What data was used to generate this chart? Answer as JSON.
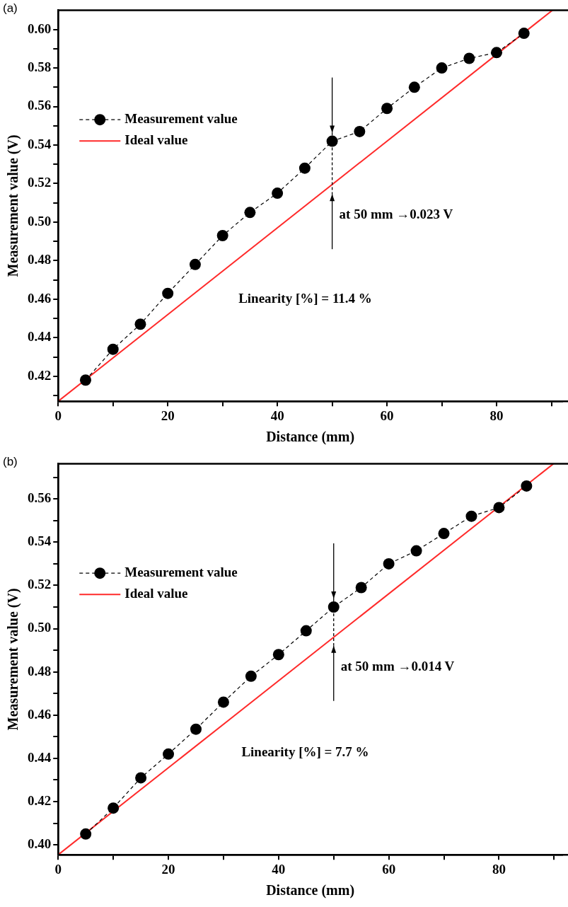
{
  "chart_data": [
    {
      "type": "line",
      "title": "(a)",
      "xlabel": "Distance (mm)",
      "ylabel": "Measurement value (V)",
      "xlim": [
        0,
        92
      ],
      "ylim": [
        0.407,
        0.61
      ],
      "xticks": [
        0,
        {
          "value": 10,
          "label": null
        },
        20,
        {
          "value": 30,
          "label": null
        },
        40,
        {
          "value": 50,
          "label": null
        },
        60,
        {
          "value": 70,
          "label": null
        },
        80,
        {
          "value": 90,
          "label": null
        }
      ],
      "yticks": [
        {
          "value": 0.41,
          "label": null
        },
        {
          "value": 0.42,
          "label": "0.42"
        },
        {
          "value": 0.43,
          "label": null
        },
        {
          "value": 0.44,
          "label": "0.44"
        },
        {
          "value": 0.45,
          "label": null
        },
        {
          "value": 0.46,
          "label": "0.46"
        },
        {
          "value": 0.47,
          "label": null
        },
        {
          "value": 0.48,
          "label": "0.48"
        },
        {
          "value": 0.49,
          "label": null
        },
        {
          "value": 0.5,
          "label": "0.50"
        },
        {
          "value": 0.51,
          "label": null
        },
        {
          "value": 0.52,
          "label": "0.52"
        },
        {
          "value": 0.53,
          "label": null
        },
        {
          "value": 0.54,
          "label": "0.54"
        },
        {
          "value": 0.55,
          "label": null
        },
        {
          "value": 0.56,
          "label": "0.56"
        },
        {
          "value": 0.57,
          "label": null
        },
        {
          "value": 0.58,
          "label": "0.58"
        },
        {
          "value": 0.59,
          "label": null
        },
        {
          "value": 0.6,
          "label": "0.60"
        }
      ],
      "grid": false,
      "legend": "top left",
      "series": [
        {
          "name": "Measurement value",
          "color": "#000000",
          "marker": "circle",
          "line_style": "dashed",
          "x": [
            5,
            10,
            15,
            20,
            25,
            30,
            35,
            40,
            45,
            50,
            55,
            60,
            65,
            70,
            75,
            80,
            85
          ],
          "values": [
            0.418,
            0.434,
            0.447,
            0.463,
            0.478,
            0.493,
            0.505,
            0.515,
            0.528,
            0.542,
            0.547,
            0.559,
            0.57,
            0.58,
            0.585,
            0.588,
            0.598
          ]
        },
        {
          "name": "Ideal value",
          "color": "#ff2a2a",
          "marker": "none",
          "line_style": "solid",
          "x": [
            0,
            90.2
          ],
          "values": [
            0.407,
            0.61
          ]
        }
      ],
      "annotations": [
        {
          "text": "at 50 mm →0.023 V",
          "x": 50,
          "y": 0.519
        },
        "Linearity [%] = 11.4 %"
      ]
    },
    {
      "type": "line",
      "title": "(b)",
      "xlabel": "Distance (mm)",
      "ylabel": "Measurement value (V)",
      "xlim": [
        0,
        91.5
      ],
      "ylim": [
        0.3954,
        0.5763
      ],
      "xticks": [
        0,
        {
          "value": 10,
          "label": null
        },
        20,
        {
          "value": 30,
          "label": null
        },
        40,
        {
          "value": 50,
          "label": null
        },
        60,
        {
          "value": 70,
          "label": null
        },
        80,
        {
          "value": 90,
          "label": null
        }
      ],
      "yticks": [
        {
          "value": 0.4,
          "label": "0.40"
        },
        {
          "value": 0.41,
          "label": null
        },
        {
          "value": 0.42,
          "label": "0.42"
        },
        {
          "value": 0.43,
          "label": null
        },
        {
          "value": 0.44,
          "label": "0.44"
        },
        {
          "value": 0.45,
          "label": null
        },
        {
          "value": 0.46,
          "label": "0.46"
        },
        {
          "value": 0.47,
          "label": null
        },
        {
          "value": 0.48,
          "label": "0.48"
        },
        {
          "value": 0.49,
          "label": null
        },
        {
          "value": 0.5,
          "label": "0.50"
        },
        {
          "value": 0.51,
          "label": null
        },
        {
          "value": 0.52,
          "label": "0.52"
        },
        {
          "value": 0.53,
          "label": null
        },
        {
          "value": 0.54,
          "label": "0.54"
        },
        {
          "value": 0.55,
          "label": null
        },
        {
          "value": 0.56,
          "label": "0.56"
        },
        {
          "value": 0.57,
          "label": null
        }
      ],
      "grid": false,
      "legend": "top left",
      "series": [
        {
          "name": "Measurement value",
          "color": "#000000",
          "marker": "circle",
          "line_style": "dashed",
          "x": [
            5,
            10,
            15,
            20,
            25,
            30,
            35,
            40,
            45,
            50,
            55,
            60,
            65,
            70,
            75,
            80,
            85
          ],
          "values": [
            0.405,
            0.417,
            0.431,
            0.442,
            0.4535,
            0.466,
            0.478,
            0.488,
            0.499,
            0.51,
            0.519,
            0.53,
            0.536,
            0.544,
            0.552,
            0.556,
            0.566
          ]
        },
        {
          "name": "Ideal value",
          "color": "#ff2a2a",
          "marker": "none",
          "line_style": "solid",
          "x": [
            0,
            89.9
          ],
          "values": [
            0.3954,
            0.5763
          ]
        }
      ],
      "annotations": [
        {
          "text": "at 50 mm →0.014 V",
          "x": 50,
          "y": 0.496
        },
        "Linearity [%] = 7.7 %"
      ]
    }
  ]
}
